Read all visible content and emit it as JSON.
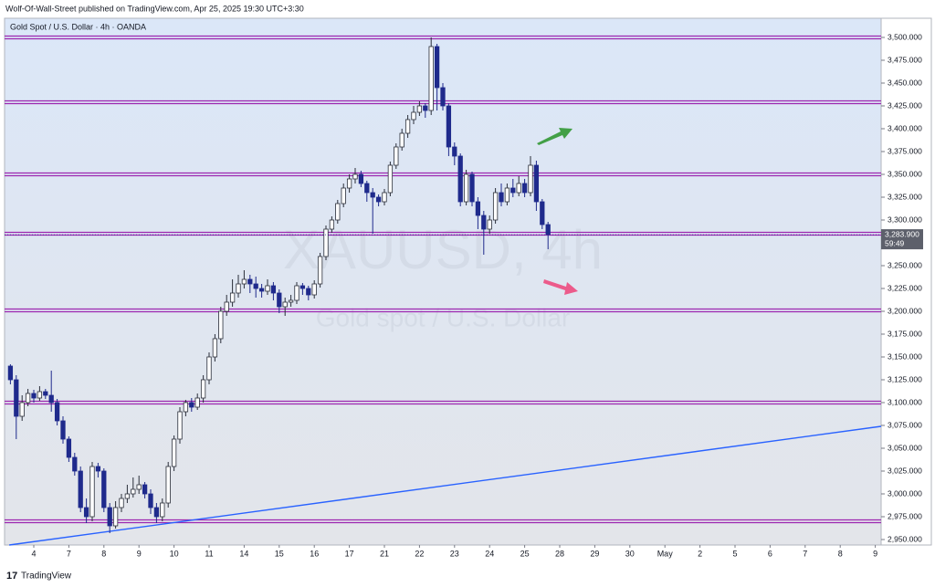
{
  "header": "Wolf-Of-Wall-Street published on TradingView.com, Apr 25, 2025 19:30 UTC+3:30",
  "footer": "TradingView",
  "chart_data": {
    "type": "candlestick",
    "legend_text": "Gold Spot / U.S. Dollar · 4h · OANDA",
    "watermark_title": "XAUUSD, 4h",
    "watermark_subtitle": "Gold spot / U.S. Dollar",
    "bull_color": "#ffffff",
    "bear_color": "#1f2a8c",
    "outline_color": "#2a2e39",
    "open": [
      3140,
      3125,
      3085,
      3100,
      3110,
      3105,
      3112,
      3108,
      3100,
      3080,
      3060,
      3040,
      3025,
      2985,
      2975,
      3030,
      3025,
      2985,
      2965,
      2985,
      2995,
      3000,
      3005,
      3010,
      3000,
      2985,
      2975,
      2990,
      3030,
      3060,
      3090,
      3100,
      3095,
      3105,
      3125,
      3150,
      3170,
      3200,
      3210,
      3220,
      3230,
      3235,
      3230,
      3225,
      3222,
      3228,
      3220,
      3205,
      3210,
      3212,
      3228,
      3225,
      3218,
      3230,
      3260,
      3290,
      3300,
      3318,
      3335,
      3345,
      3350,
      3340,
      3330,
      3325,
      3320,
      3330,
      3360,
      3380,
      3395,
      3410,
      3418,
      3425,
      3420,
      3490,
      3445,
      3425,
      3380,
      3370,
      3320,
      3350,
      3320,
      3305,
      3290,
      3300,
      3330,
      3320,
      3335,
      3330,
      3340,
      3330,
      3360,
      3320,
      3295
    ],
    "high": [
      3142,
      3130,
      3108,
      3115,
      3114,
      3118,
      3115,
      3135,
      3104,
      3085,
      3063,
      3045,
      3030,
      2995,
      3035,
      3034,
      3028,
      2990,
      2992,
      3000,
      3010,
      3018,
      3020,
      3013,
      3005,
      2990,
      2995,
      3035,
      3064,
      3095,
      3103,
      3105,
      3110,
      3130,
      3155,
      3175,
      3205,
      3218,
      3235,
      3240,
      3245,
      3240,
      3238,
      3230,
      3235,
      3232,
      3224,
      3215,
      3218,
      3232,
      3231,
      3228,
      3234,
      3264,
      3294,
      3304,
      3322,
      3340,
      3350,
      3357,
      3354,
      3343,
      3335,
      3328,
      3334,
      3364,
      3384,
      3400,
      3415,
      3425,
      3430,
      3428,
      3500,
      3493,
      3450,
      3428,
      3385,
      3373,
      3355,
      3353,
      3325,
      3310,
      3305,
      3335,
      3340,
      3340,
      3345,
      3348,
      3345,
      3370,
      3365,
      3323,
      3298
    ],
    "low": [
      3120,
      3060,
      3080,
      3096,
      3100,
      3102,
      3104,
      3090,
      3075,
      3055,
      3035,
      3020,
      2980,
      2968,
      2970,
      3018,
      2980,
      2957,
      2962,
      2980,
      2990,
      2996,
      3000,
      2995,
      2978,
      2968,
      2970,
      2985,
      3025,
      3055,
      3085,
      3090,
      3092,
      3100,
      3120,
      3145,
      3165,
      3195,
      3205,
      3215,
      3225,
      3220,
      3215,
      3215,
      3218,
      3212,
      3198,
      3195,
      3205,
      3208,
      3218,
      3212,
      3214,
      3226,
      3256,
      3286,
      3296,
      3314,
      3330,
      3340,
      3336,
      3320,
      3285,
      3315,
      3316,
      3326,
      3356,
      3376,
      3390,
      3405,
      3414,
      3412,
      3415,
      3420,
      3420,
      3370,
      3360,
      3315,
      3316,
      3315,
      3290,
      3262,
      3285,
      3296,
      3315,
      3316,
      3325,
      3326,
      3325,
      3326,
      3310,
      3290,
      3268
    ],
    "close": [
      3125,
      3085,
      3100,
      3110,
      3105,
      3112,
      3108,
      3100,
      3080,
      3060,
      3040,
      3025,
      2985,
      2975,
      3030,
      3025,
      2985,
      2965,
      2985,
      2995,
      3000,
      3005,
      3010,
      3000,
      2985,
      2975,
      2990,
      3030,
      3060,
      3090,
      3100,
      3095,
      3105,
      3125,
      3150,
      3170,
      3200,
      3210,
      3220,
      3230,
      3235,
      3230,
      3225,
      3222,
      3228,
      3220,
      3205,
      3210,
      3212,
      3228,
      3225,
      3218,
      3230,
      3260,
      3290,
      3300,
      3318,
      3335,
      3345,
      3350,
      3340,
      3330,
      3325,
      3320,
      3330,
      3360,
      3380,
      3395,
      3410,
      3418,
      3425,
      3420,
      3490,
      3445,
      3425,
      3380,
      3370,
      3320,
      3350,
      3320,
      3305,
      3290,
      3300,
      3330,
      3320,
      3335,
      3330,
      3340,
      3330,
      3360,
      3320,
      3295,
      3284
    ],
    "levels": [
      3500,
      3429,
      3350,
      3285,
      3201,
      3100,
      2970
    ],
    "level_color": "#9c27b0",
    "trendline": {
      "x": [
        -0.2,
        149
      ],
      "y": [
        2944,
        3074
      ],
      "color": "#2962ff"
    },
    "last_price": {
      "value": 3283.9,
      "label": "3,283.900"
    },
    "countdown": "59:49",
    "xlim": [
      -1,
      149
    ],
    "ylim": [
      2944,
      3521
    ],
    "xticks": [
      {
        "value": 4,
        "label": "4"
      },
      {
        "value": 10,
        "label": "7"
      },
      {
        "value": 16,
        "label": "8"
      },
      {
        "value": 22,
        "label": "9"
      },
      {
        "value": 28,
        "label": "10"
      },
      {
        "value": 34,
        "label": "11"
      },
      {
        "value": 40,
        "label": "14"
      },
      {
        "value": 46,
        "label": "15"
      },
      {
        "value": 52,
        "label": "16"
      },
      {
        "value": 58,
        "label": "17"
      },
      {
        "value": 64,
        "label": "21"
      },
      {
        "value": 70,
        "label": "22"
      },
      {
        "value": 76,
        "label": "23"
      },
      {
        "value": 82,
        "label": "24"
      },
      {
        "value": 88,
        "label": "25"
      },
      {
        "value": 94,
        "label": "28"
      },
      {
        "value": 100,
        "label": "29"
      },
      {
        "value": 106,
        "label": "30"
      },
      {
        "value": 112,
        "label": "May"
      },
      {
        "value": 118,
        "label": "2"
      },
      {
        "value": 124,
        "label": "5"
      },
      {
        "value": 130,
        "label": "6"
      },
      {
        "value": 136,
        "label": "7"
      },
      {
        "value": 142,
        "label": "8"
      },
      {
        "value": 148,
        "label": "9"
      }
    ],
    "yticks": [
      {
        "value": 2950,
        "label": "2,950.000"
      },
      {
        "value": 2975,
        "label": "2,975.000"
      },
      {
        "value": 3000,
        "label": "3,000.000"
      },
      {
        "value": 3025,
        "label": "3,025.000"
      },
      {
        "value": 3050,
        "label": "3,050.000"
      },
      {
        "value": 3075,
        "label": "3,075.000"
      },
      {
        "value": 3100,
        "label": "3,100.000"
      },
      {
        "value": 3125,
        "label": "3,125.000"
      },
      {
        "value": 3150,
        "label": "3,150.000"
      },
      {
        "value": 3175,
        "label": "3,175.000"
      },
      {
        "value": 3200,
        "label": "3,200.000"
      },
      {
        "value": 3225,
        "label": "3,225.000"
      },
      {
        "value": 3250,
        "label": "3,250.000"
      },
      {
        "value": 3275,
        "label": "3,275.000"
      },
      {
        "value": 3300,
        "label": "3,300.000"
      },
      {
        "value": 3325,
        "label": "3,325.000"
      },
      {
        "value": 3350,
        "label": "3,350.000"
      },
      {
        "value": 3375,
        "label": "3,375.000"
      },
      {
        "value": 3400,
        "label": "3,400.000"
      },
      {
        "value": 3425,
        "label": "3,425.000"
      },
      {
        "value": 3450,
        "label": "3,450.000"
      },
      {
        "value": 3475,
        "label": "3,475.000"
      },
      {
        "value": 3500,
        "label": "3,500.000"
      }
    ]
  }
}
